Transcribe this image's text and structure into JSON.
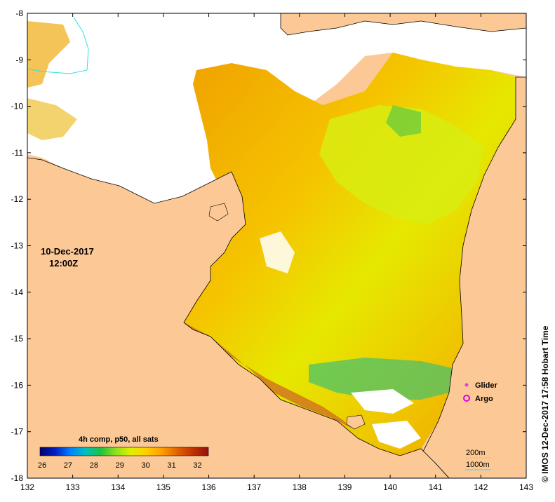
{
  "map": {
    "date": "10-Dec-2017",
    "time": "12:00Z",
    "credit": "© IMOS 12-Dec-2017 17:58 Hobart Time",
    "x_ticks": [
      "132",
      "133",
      "134",
      "135",
      "136",
      "137",
      "138",
      "139",
      "140",
      "141",
      "142",
      "143"
    ],
    "y_ticks": [
      "-8",
      "-9",
      "-10",
      "-11",
      "-12",
      "-13",
      "-14",
      "-15",
      "-16",
      "-17",
      "-18"
    ],
    "lon_range": [
      132,
      143
    ],
    "lat_range": [
      -18,
      -8
    ],
    "land_color": "#fcc996",
    "ocean_no_data_color": "#ffffff"
  },
  "colorbar": {
    "title": "4h comp, p50, all sats",
    "ticks": [
      "26",
      "27",
      "28",
      "29",
      "30",
      "31",
      "32"
    ],
    "range": [
      26,
      32.5
    ],
    "colors": [
      "#000070",
      "#0020c0",
      "#0080ff",
      "#00c0c0",
      "#20c040",
      "#90e020",
      "#e0f000",
      "#ffd000",
      "#ffa000",
      "#e06000",
      "#c03000",
      "#901010"
    ]
  },
  "legend": {
    "glider_label": "Glider",
    "argo_label": "Argo",
    "glider_color": "#e040e0",
    "argo_color": "#e000e0"
  },
  "bathymetry_legend": {
    "line_200": "200m",
    "line_1000": "1000m"
  }
}
